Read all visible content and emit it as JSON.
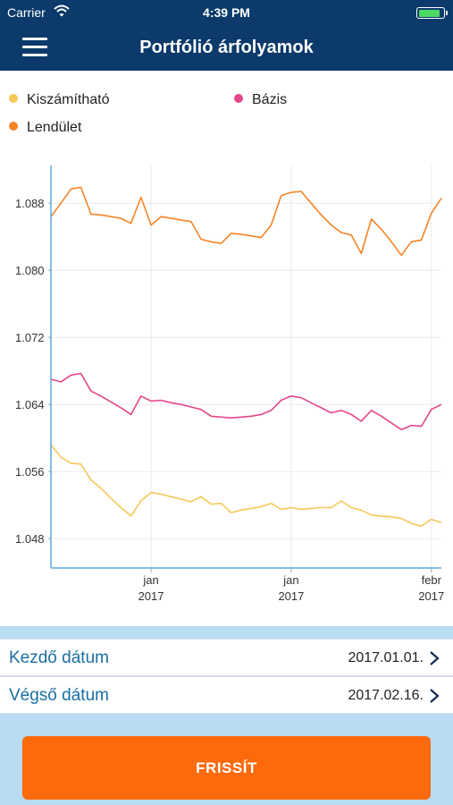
{
  "status_bar": {
    "carrier": "Carrier",
    "time": "4:39 PM",
    "battery_level": 0.9
  },
  "header": {
    "title": "Portfólió árfolyamok"
  },
  "legend": [
    {
      "name": "Kiszámítható",
      "color": "#f5c85a"
    },
    {
      "name": "Bázis",
      "color": "#e4478a"
    },
    {
      "name": "Lendület",
      "color": "#f58426"
    }
  ],
  "chart_data": {
    "type": "line",
    "y_ticks": [
      "1.048",
      "1.056",
      "1.064",
      "1.072",
      "1.080",
      "1.088"
    ],
    "x_ticks": [
      {
        "month": "jan",
        "year": "2017",
        "index": 10
      },
      {
        "month": "jan",
        "year": "2017",
        "index": 24
      },
      {
        "month": "febr",
        "year": "2017",
        "index": 38
      }
    ],
    "ylim": [
      1.0445,
      1.0925
    ],
    "grid": true,
    "series": [
      {
        "name": "Lendület",
        "color": "#f58426",
        "values": [
          1.0864,
          1.088,
          1.0897,
          1.0899,
          1.0867,
          1.0866,
          1.0864,
          1.0862,
          1.0856,
          1.0887,
          1.0854,
          1.0864,
          1.0862,
          1.086,
          1.0858,
          1.0837,
          1.0834,
          1.0832,
          1.0844,
          1.0843,
          1.0841,
          1.0839,
          1.0854,
          1.0889,
          1.0893,
          1.0894,
          1.088,
          1.0866,
          1.0854,
          1.0845,
          1.0842,
          1.082,
          1.0861,
          1.0849,
          1.0834,
          1.0818,
          1.0834,
          1.0836,
          1.0868,
          1.0886
        ]
      },
      {
        "name": "Bázis",
        "color": "#e4478a",
        "values": [
          1.067,
          1.0667,
          1.0675,
          1.0677,
          1.0656,
          1.065,
          1.0643,
          1.0636,
          1.0628,
          1.065,
          1.0644,
          1.0645,
          1.0642,
          1.064,
          1.0637,
          1.0634,
          1.0626,
          1.0625,
          1.0624,
          1.0625,
          1.0626,
          1.0628,
          1.0633,
          1.0645,
          1.065,
          1.0648,
          1.0642,
          1.0636,
          1.063,
          1.0633,
          1.0628,
          1.062,
          1.0633,
          1.0626,
          1.0618,
          1.061,
          1.0615,
          1.0614,
          1.0634,
          1.064
        ]
      },
      {
        "name": "Kiszámítható",
        "color": "#f5c85a",
        "values": [
          1.0592,
          1.0577,
          1.057,
          1.0569,
          1.055,
          1.054,
          1.0528,
          1.0517,
          1.0507,
          1.0525,
          1.0535,
          1.0533,
          1.053,
          1.0527,
          1.0524,
          1.053,
          1.0521,
          1.0522,
          1.0511,
          1.0514,
          1.0516,
          1.0518,
          1.0522,
          1.0515,
          1.0517,
          1.0515,
          1.0516,
          1.0517,
          1.0517,
          1.0525,
          1.0517,
          1.0514,
          1.0508,
          1.0507,
          1.0506,
          1.0504,
          1.0498,
          1.0495,
          1.0503,
          1.0499
        ]
      }
    ]
  },
  "form": {
    "start_label": "Kezdő dátum",
    "start_value": "2017.01.01.",
    "end_label": "Végső dátum",
    "end_value": "2017.02.16."
  },
  "refresh_label": "FRISSÍT"
}
